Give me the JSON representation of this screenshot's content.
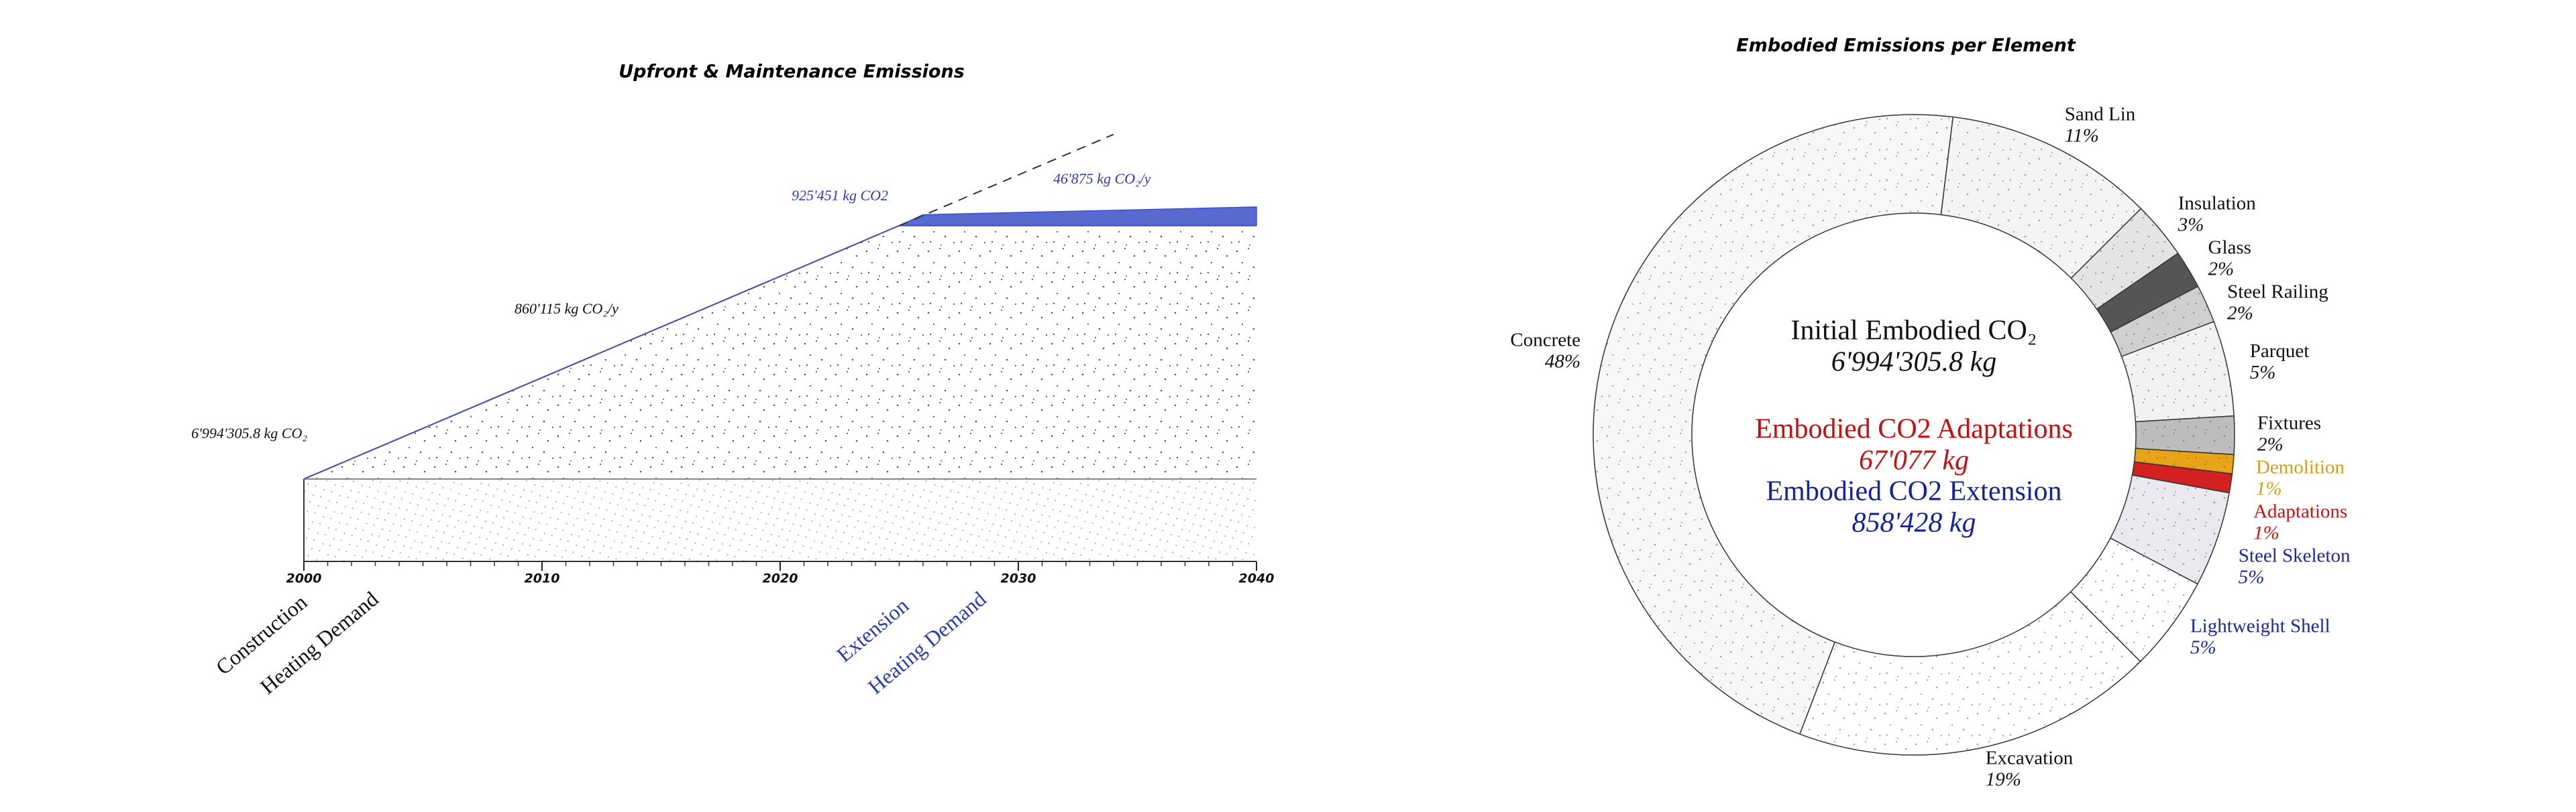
{
  "chart_data": [
    {
      "type": "area",
      "title": "Upfront & Maintenance Emissions",
      "x": [
        2000,
        2025,
        2026,
        2040
      ],
      "series": [
        {
          "color": "#444444",
          "values": [
            6994305.8,
            28497180.8,
            28497180.8,
            28497180.8
          ]
        },
        {
          "color": "#3b50c8",
          "values": [
            0,
            0,
            925451,
            1581701
          ]
        }
      ],
      "projection": {
        "x": [
          2025,
          2034
        ],
        "values": [
          28497180.8,
          36238215.8
        ]
      },
      "xlim": [
        2000,
        2040
      ],
      "xticks": [
        2000,
        2010,
        2020,
        2030,
        2040
      ],
      "xminor": 1,
      "ylim": [
        0,
        36500000
      ],
      "annotations": [
        {
          "text": "6'994'305.8 kg CO₂",
          "color": "#111111"
        },
        {
          "text": "860'115 kg CO₂/y",
          "color": "#111111"
        },
        {
          "text": "925'451 kg CO2",
          "color": "#2a3db0"
        },
        {
          "text": "46'875 kg CO₂/y",
          "color": "#2a3db0"
        }
      ],
      "phase_labels": [
        {
          "text": "Construction",
          "color": "#111111"
        },
        {
          "text": "Heating Demand",
          "color": "#111111"
        },
        {
          "text": "Extension",
          "color": "#2a3db0"
        },
        {
          "text": "Heating Demand",
          "color": "#2a3db0"
        }
      ]
    },
    {
      "type": "donut",
      "title": "Embodied Emissions per Element",
      "categories": [
        "Sand Lin",
        "Insulation",
        "Glass",
        "Steel Railing",
        "Parquet",
        "Fixtures",
        "Demolition",
        "Adaptations",
        "Steel Skeleton",
        "Lightweight Shell",
        "Excavation",
        "Concrete"
      ],
      "values": [
        11,
        3,
        2,
        2,
        5,
        2,
        1,
        1,
        5,
        5,
        19,
        48
      ],
      "value_labels": [
        "11%",
        "3%",
        "2%",
        "2%",
        "5%",
        "2%",
        "1%",
        "1%",
        "5%",
        "5%",
        "19%",
        "48%"
      ],
      "colors": [
        "#f4f4f4",
        "#e4e4e4",
        "#555555",
        "#cfcfcf",
        "#f2f2f2",
        "#bdbdbd",
        "#e8a317",
        "#d42020",
        "#e9e9ef",
        "#ffffff",
        "#ffffff",
        "#f7f7f7"
      ],
      "label_colors": [
        "#111111",
        "#111111",
        "#111111",
        "#111111",
        "#111111",
        "#111111",
        "#d4a017",
        "#cc1111",
        "#1a2a9a",
        "#1a2a9a",
        "#111111",
        "#111111"
      ],
      "center_text": [
        {
          "text": "Initial Embodied CO₂",
          "color": "#111111"
        },
        {
          "text": "6'994'305.8 kg",
          "color": "#111111"
        },
        {
          "text": "Embodied CO2 Adaptations",
          "color": "#c41010"
        },
        {
          "text": "67'077 kg",
          "color": "#c41010"
        },
        {
          "text": "Embodied CO2 Extension",
          "color": "#13239a"
        },
        {
          "text": "858'428 kg",
          "color": "#13239a"
        }
      ]
    }
  ]
}
